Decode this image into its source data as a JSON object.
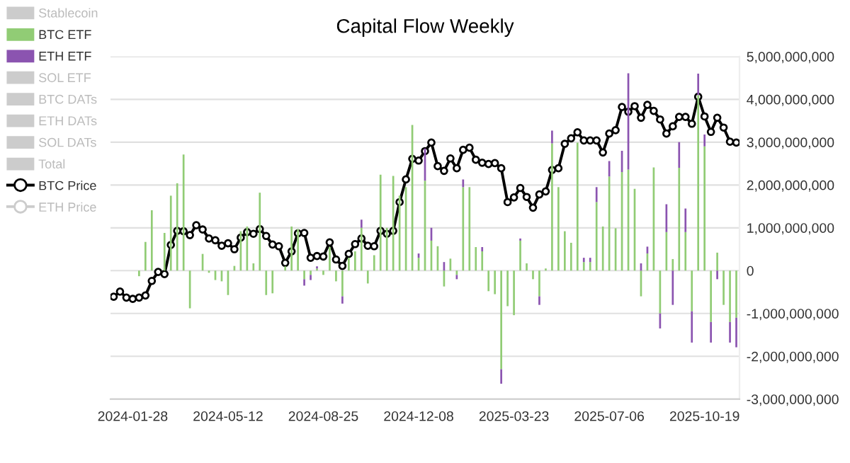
{
  "chart_data": {
    "type": "bar",
    "title": "Capital Flow Weekly",
    "categories": [
      null,
      null,
      null,
      "2024-01-28",
      null,
      null,
      null,
      null,
      null,
      null,
      null,
      null,
      null,
      null,
      null,
      null,
      null,
      null,
      "2024-05-12",
      null,
      null,
      null,
      null,
      null,
      null,
      null,
      null,
      null,
      null,
      null,
      null,
      null,
      null,
      "2024-08-25",
      null,
      null,
      null,
      null,
      null,
      null,
      null,
      null,
      null,
      null,
      null,
      null,
      null,
      null,
      "2024-12-08",
      null,
      null,
      null,
      null,
      null,
      null,
      null,
      null,
      null,
      null,
      null,
      null,
      null,
      null,
      "2025-03-23",
      null,
      null,
      null,
      null,
      null,
      null,
      null,
      null,
      null,
      null,
      null,
      null,
      null,
      null,
      "2025-07-06",
      null,
      null,
      null,
      null,
      null,
      null,
      null,
      null,
      null,
      null,
      null,
      null,
      null,
      null,
      "2025-10-19",
      null,
      null,
      null,
      null,
      null
    ],
    "stacked": true,
    "series": [
      {
        "name": "Stablecoin",
        "color": "#cccccc",
        "values": [
          null,
          null,
          null,
          null,
          null,
          null,
          null,
          null,
          null,
          null,
          null,
          null,
          null,
          null,
          null,
          null,
          null,
          null,
          null,
          null,
          null,
          null,
          null,
          null,
          null,
          null,
          null,
          null,
          null,
          null,
          null,
          null,
          null,
          null,
          null,
          null,
          null,
          null,
          null,
          null,
          null,
          null,
          null,
          null,
          null,
          null,
          null,
          null,
          null,
          null,
          null,
          null,
          null,
          null,
          null,
          null,
          null,
          null,
          null,
          null,
          null,
          null,
          null,
          null,
          null,
          null,
          null,
          null,
          null,
          null,
          null,
          null,
          null,
          null,
          null,
          null,
          null,
          null,
          null,
          null,
          null,
          null,
          null,
          null,
          null,
          null,
          null,
          null,
          null,
          null,
          null,
          null,
          null,
          null,
          null,
          null,
          null,
          null,
          null
        ]
      },
      {
        "name": "BTC ETF",
        "color": "#91cc75",
        "values": [
          null,
          null,
          null,
          null,
          -130000000.0,
          670000000.0,
          1410000000.0,
          null,
          880000000.0,
          1750000000.0,
          2040000000.0,
          2710000000.0,
          -880000000.0,
          null,
          390000000.0,
          -50000000.0,
          -220000000.0,
          -250000000.0,
          -570000000.0,
          110000000.0,
          920000000.0,
          1030000000.0,
          170000000.0,
          1820000000.0,
          -570000000.0,
          -530000000.0,
          null,
          100000000.0,
          1030000000.0,
          970000000.0,
          -200000000.0,
          -100000000.0,
          50000000.0,
          -100000000.0,
          550000000.0,
          -250000000.0,
          -600000000.0,
          300000000.0,
          450000000.0,
          1000000000.0,
          -300000000.0,
          360000000.0,
          2240000000.0,
          1000000000.0,
          2210000000.0,
          1750000000.0,
          1950000000.0,
          3400000000.0,
          300000000.0,
          2100000000.0,
          700000000.0,
          570000000.0,
          -370000000.0,
          280000000.0,
          -100000000.0,
          1950000000.0,
          1950000000.0,
          550000000.0,
          450000000.0,
          -480000000.0,
          -550000000.0,
          -2300000000.0,
          -830000000.0,
          -1040000000.0,
          700000000.0,
          170000000.0,
          -200000000.0,
          -600000000.0,
          50000000.0,
          2970000000.0,
          1950000000.0,
          920000000.0,
          650000000.0,
          2990000000.0,
          200000000.0,
          200000000.0,
          1600000000.0,
          1030000000.0,
          2200000000.0,
          990000000.0,
          2300000000.0,
          2360000000.0,
          1910000000.0,
          -600000000.0,
          400000000.0,
          2410000000.0,
          -1000000000.0,
          900000000.0,
          270000000.0,
          2400000000.0,
          900000000.0,
          -950000000.0,
          4100000000.0,
          2900000000.0,
          -1200000000.0,
          420000000.0,
          -800000000.0,
          -1200000000.0,
          -1100000000.0
        ]
      },
      {
        "name": "ETH ETF",
        "color": "#8b54b0",
        "values": [
          null,
          null,
          null,
          null,
          null,
          null,
          null,
          null,
          null,
          null,
          null,
          null,
          null,
          null,
          null,
          null,
          null,
          null,
          null,
          null,
          null,
          null,
          null,
          null,
          null,
          null,
          null,
          null,
          null,
          null,
          -150000000.0,
          -120000000.0,
          50000000.0,
          null,
          null,
          null,
          -170000000.0,
          null,
          null,
          190000000.0,
          null,
          null,
          null,
          null,
          null,
          null,
          null,
          null,
          100000000.0,
          750000000.0,
          300000000.0,
          null,
          200000000.0,
          null,
          -100000000.0,
          180000000.0,
          null,
          null,
          100000000.0,
          null,
          null,
          -340000000.0,
          null,
          null,
          50000000.0,
          null,
          null,
          -200000000.0,
          null,
          300000000.0,
          null,
          null,
          null,
          null,
          100000000.0,
          100000000.0,
          350000000.0,
          null,
          360000000.0,
          null,
          500000000.0,
          2250000000.0,
          null,
          170000000.0,
          160000000.0,
          null,
          -350000000.0,
          650000000.0,
          -800000000.0,
          600000000.0,
          550000000.0,
          -730000000.0,
          500000000.0,
          280000000.0,
          -480000000.0,
          -200000000.0,
          null,
          -480000000.0,
          -690000000.0
        ]
      },
      {
        "name": "SOL ETF",
        "color": "#cccccc",
        "values": [
          null,
          null,
          null,
          null,
          null,
          null,
          null,
          null,
          null,
          null,
          null,
          null,
          null,
          null,
          null,
          null,
          null,
          null,
          null,
          null,
          null,
          null,
          null,
          null,
          null,
          null,
          null,
          null,
          null,
          null,
          null,
          null,
          null,
          null,
          null,
          null,
          null,
          null,
          null,
          null,
          null,
          null,
          null,
          null,
          null,
          null,
          null,
          null,
          null,
          null,
          null,
          null,
          null,
          null,
          null,
          null,
          null,
          null,
          null,
          null,
          null,
          null,
          null,
          null,
          null,
          null,
          null,
          null,
          null,
          null,
          null,
          null,
          null,
          null,
          null,
          null,
          null,
          null,
          null,
          null,
          null,
          null,
          null,
          null,
          null,
          null,
          null,
          null,
          null,
          null,
          null,
          null,
          null,
          null,
          null,
          null,
          null,
          null,
          null
        ]
      },
      {
        "name": "BTC DATs",
        "color": "#cccccc",
        "values": [
          null,
          null,
          null,
          null,
          null,
          null,
          null,
          null,
          null,
          null,
          null,
          null,
          null,
          null,
          null,
          null,
          null,
          null,
          null,
          null,
          null,
          null,
          null,
          null,
          null,
          null,
          null,
          null,
          null,
          null,
          null,
          null,
          null,
          null,
          null,
          null,
          null,
          null,
          null,
          null,
          null,
          null,
          null,
          null,
          null,
          null,
          null,
          null,
          null,
          null,
          null,
          null,
          null,
          null,
          null,
          null,
          null,
          null,
          null,
          null,
          null,
          null,
          null,
          null,
          null,
          null,
          null,
          null,
          null,
          null,
          null,
          null,
          null,
          null,
          null,
          null,
          null,
          null,
          null,
          null,
          null,
          null,
          null,
          null,
          null,
          null,
          null,
          null,
          null,
          null,
          null,
          null,
          null,
          null,
          null,
          null,
          null,
          null,
          null
        ]
      },
      {
        "name": "ETH DATs",
        "color": "#cccccc",
        "values": [
          null,
          null,
          null,
          null,
          null,
          null,
          null,
          null,
          null,
          null,
          null,
          null,
          null,
          null,
          null,
          null,
          null,
          null,
          null,
          null,
          null,
          null,
          null,
          null,
          null,
          null,
          null,
          null,
          null,
          null,
          null,
          null,
          null,
          null,
          null,
          null,
          null,
          null,
          null,
          null,
          null,
          null,
          null,
          null,
          null,
          null,
          null,
          null,
          null,
          null,
          null,
          null,
          null,
          null,
          null,
          null,
          null,
          null,
          null,
          null,
          null,
          null,
          null,
          null,
          null,
          null,
          null,
          null,
          null,
          null,
          null,
          null,
          null,
          null,
          null,
          null,
          null,
          null,
          null,
          null,
          null,
          null,
          null,
          null,
          null,
          null,
          null,
          null,
          null,
          null,
          null,
          null,
          null,
          null,
          null,
          null,
          null,
          null,
          null
        ]
      },
      {
        "name": "SOL DATs",
        "color": "#cccccc",
        "values": [
          null,
          null,
          null,
          null,
          null,
          null,
          null,
          null,
          null,
          null,
          null,
          null,
          null,
          null,
          null,
          null,
          null,
          null,
          null,
          null,
          null,
          null,
          null,
          null,
          null,
          null,
          null,
          null,
          null,
          null,
          null,
          null,
          null,
          null,
          null,
          null,
          null,
          null,
          null,
          null,
          null,
          null,
          null,
          null,
          null,
          null,
          null,
          null,
          null,
          null,
          null,
          null,
          null,
          null,
          null,
          null,
          null,
          null,
          null,
          null,
          null,
          null,
          null,
          null,
          null,
          null,
          null,
          null,
          null,
          null,
          null,
          null,
          null,
          null,
          null,
          null,
          null,
          null,
          null,
          null,
          null,
          null,
          null,
          null,
          null,
          null,
          null,
          null,
          null,
          null,
          null,
          null,
          null,
          null,
          null,
          null,
          null,
          null,
          null
        ]
      },
      {
        "name": "Total",
        "color": "#cccccc",
        "values": [
          null,
          null,
          null,
          null,
          null,
          null,
          null,
          null,
          null,
          null,
          null,
          null,
          null,
          null,
          null,
          null,
          null,
          null,
          null,
          null,
          null,
          null,
          null,
          null,
          null,
          null,
          null,
          null,
          null,
          null,
          null,
          null,
          null,
          null,
          null,
          null,
          null,
          null,
          null,
          null,
          null,
          null,
          null,
          null,
          null,
          null,
          null,
          null,
          null,
          null,
          null,
          null,
          null,
          null,
          null,
          null,
          null,
          null,
          null,
          null,
          null,
          null,
          null,
          null,
          null,
          null,
          null,
          null,
          null,
          null,
          null,
          null,
          null,
          null,
          null,
          null,
          null,
          null,
          null,
          null,
          null,
          null,
          null,
          null,
          null,
          null,
          null,
          null,
          null,
          null,
          null,
          null,
          null,
          null,
          null,
          null,
          null,
          null,
          null
        ]
      },
      {
        "name": "BTC Price",
        "type": "line",
        "color": "#000000",
        "marker": "circle",
        "values": [
          -610000000.0,
          -490000000.0,
          -630000000.0,
          -660000000.0,
          -630000000.0,
          -580000000.0,
          -240000000.0,
          -30000000.0,
          -80000000.0,
          600000000.0,
          930000000.0,
          920000000.0,
          830000000.0,
          1060000000.0,
          960000000.0,
          750000000.0,
          710000000.0,
          580000000.0,
          640000000.0,
          500000000.0,
          770000000.0,
          900000000.0,
          860000000.0,
          970000000.0,
          810000000.0,
          610000000.0,
          570000000.0,
          180000000.0,
          450000000.0,
          870000000.0,
          880000000.0,
          300000000.0,
          340000000.0,
          330000000.0,
          660000000.0,
          260000000.0,
          110000000.0,
          390000000.0,
          620000000.0,
          750000000.0,
          580000000.0,
          570000000.0,
          930000000.0,
          860000000.0,
          930000000.0,
          1600000000.0,
          2130000000.0,
          2610000000.0,
          2570000000.0,
          2790000000.0,
          2990000000.0,
          2440000000.0,
          2330000000.0,
          2620000000.0,
          2390000000.0,
          2820000000.0,
          2870000000.0,
          2590000000.0,
          2520000000.0,
          2490000000.0,
          2510000000.0,
          2390000000.0,
          1600000000.0,
          1710000000.0,
          1930000000.0,
          1720000000.0,
          1470000000.0,
          1780000000.0,
          1850000000.0,
          2350000000.0,
          2390000000.0,
          2960000000.0,
          3090000000.0,
          3230000000.0,
          3040000000.0,
          3040000000.0,
          3040000000.0,
          2760000000.0,
          3200000000.0,
          3280000000.0,
          3820000000.0,
          3710000000.0,
          3840000000.0,
          3570000000.0,
          3870000000.0,
          3730000000.0,
          3530000000.0,
          3200000000.0,
          3370000000.0,
          3590000000.0,
          3590000000.0,
          3430000000.0,
          4060000000.0,
          3600000000.0,
          3240000000.0,
          3570000000.0,
          3340000000.0,
          3010000000.0,
          2990000000.0
        ]
      },
      {
        "name": "ETH Price",
        "type": "line",
        "color": "#cccccc",
        "marker": "circle",
        "values": [
          null,
          null,
          null,
          null,
          null,
          null,
          null,
          null,
          null,
          null,
          null,
          null,
          null,
          null,
          null,
          null,
          null,
          null,
          null,
          null,
          null,
          null,
          null,
          null,
          null,
          null,
          null,
          null,
          null,
          null,
          null,
          null,
          null,
          null,
          null,
          null,
          null,
          null,
          null,
          null,
          null,
          null,
          null,
          null,
          null,
          null,
          null,
          null,
          null,
          null,
          null,
          null,
          null,
          null,
          null,
          null,
          null,
          null,
          null,
          null,
          null,
          null,
          null,
          null,
          null,
          null,
          null,
          null,
          null,
          null,
          null,
          null,
          null,
          null,
          null,
          null,
          null,
          null,
          null,
          null,
          null,
          null,
          null,
          null,
          null,
          null,
          null,
          null,
          null,
          null,
          null,
          null,
          null,
          null,
          null,
          null,
          null,
          null,
          null
        ]
      }
    ],
    "ylim": [
      -3000000000.0,
      5000000000.0
    ],
    "yticks": [
      {
        "value": -3000000000.0,
        "label": "-3,000,000,000"
      },
      {
        "value": -2000000000.0,
        "label": "-2,000,000,000"
      },
      {
        "value": -1000000000.0,
        "label": "-1,000,000,000"
      },
      0,
      {
        "value": 1000000000.0,
        "label": "1,000,000,000"
      },
      {
        "value": 2000000000.0,
        "label": "2,000,000,000"
      },
      {
        "value": 3000000000.0,
        "label": "3,000,000,000"
      },
      {
        "value": 4000000000.0,
        "label": "4,000,000,000"
      },
      {
        "value": 5000000000.0,
        "label": "5,000,000,000"
      }
    ],
    "grid": "y",
    "legend": "left"
  }
}
